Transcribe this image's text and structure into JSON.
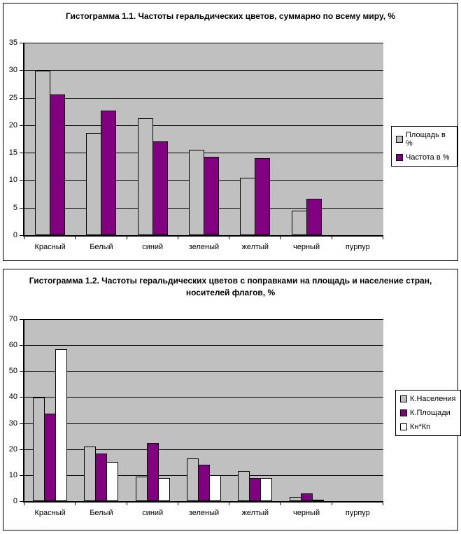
{
  "chart_data": [
    {
      "type": "bar",
      "title": "Гистограмма 1.1. Частоты геральдических цветов, суммарно по всему миру, %",
      "categories": [
        "Красный",
        "Белый",
        "синий",
        "зеленый",
        "желтый",
        "черный",
        "пурпур"
      ],
      "series": [
        {
          "name": "Площадь в %",
          "color": "#c0c0c0",
          "values": [
            29.9,
            18.6,
            21.3,
            15.5,
            10.4,
            4.4,
            0
          ]
        },
        {
          "name": "Частота в %",
          "color": "#800080",
          "values": [
            25.6,
            22.7,
            17,
            14.3,
            14,
            6.6,
            0
          ]
        }
      ],
      "ylim": [
        0,
        35
      ],
      "ytick_step": 5,
      "ytick_labels": [
        "0",
        "5",
        "10",
        "15",
        "20",
        "25",
        "30",
        "35"
      ],
      "grid": true,
      "legend_position": "right",
      "plot_background": "#c0c0c0",
      "bar_outline": "#000000"
    },
    {
      "type": "bar",
      "title": "Гистограмма 1.2. Частоты геральдических цветов с поправками на площадь и население стран, носителей флагов, %",
      "categories": [
        "Красный",
        "Белый",
        "синий",
        "зеленый",
        "желтый",
        "черный",
        "пурпур"
      ],
      "series": [
        {
          "name": "К.Населения",
          "color": "#c0c0c0",
          "values": [
            39.9,
            21,
            9.3,
            16.5,
            11.6,
            1.7,
            0
          ]
        },
        {
          "name": "К.Площади",
          "color": "#800080",
          "values": [
            33.6,
            18.4,
            22.4,
            14,
            9,
            3,
            0
          ]
        },
        {
          "name": "Кн*Кп",
          "color": "#ffffff",
          "values": [
            58.3,
            15.2,
            9,
            10,
            9,
            0.5,
            0
          ]
        }
      ],
      "ylim": [
        0,
        70
      ],
      "ytick_step": 10,
      "ytick_labels": [
        "0",
        "10",
        "20",
        "30",
        "40",
        "50",
        "60",
        "70"
      ],
      "grid": true,
      "legend_position": "right",
      "plot_background": "#c0c0c0",
      "bar_outline": "#000000"
    }
  ]
}
